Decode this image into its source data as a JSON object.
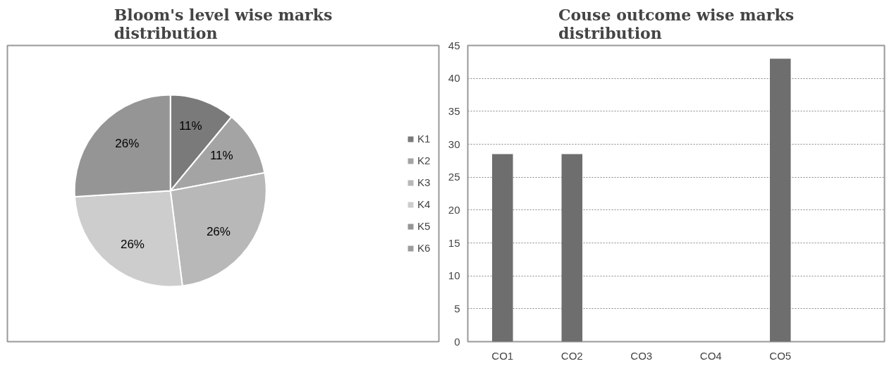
{
  "chart_data": [
    {
      "type": "pie",
      "title": "Bloom's level wise marks distribution",
      "categories": [
        "K1",
        "K2",
        "K3",
        "K4",
        "K5",
        "K6"
      ],
      "values": [
        11,
        11,
        26,
        26,
        26,
        0
      ],
      "colors": [
        "#7a7a7a",
        "#a4a4a4",
        "#b8b8b8",
        "#cdcdcd",
        "#959595",
        "#9c9c9c"
      ],
      "value_labels": [
        "11%",
        "11%",
        "26%",
        "26%",
        "26%",
        null
      ],
      "legend": "right"
    },
    {
      "type": "bar",
      "title": "Couse outcome wise marks distribution",
      "categories": [
        "CO1",
        "CO2",
        "CO3",
        "CO4",
        "CO5"
      ],
      "values": [
        28.5,
        28.5,
        0,
        0,
        43
      ],
      "color": "#6e6e6e",
      "ylim": [
        0,
        45
      ],
      "yticks": [
        0,
        5,
        10,
        15,
        20,
        25,
        30,
        35,
        40,
        45
      ],
      "grid": "y"
    }
  ]
}
